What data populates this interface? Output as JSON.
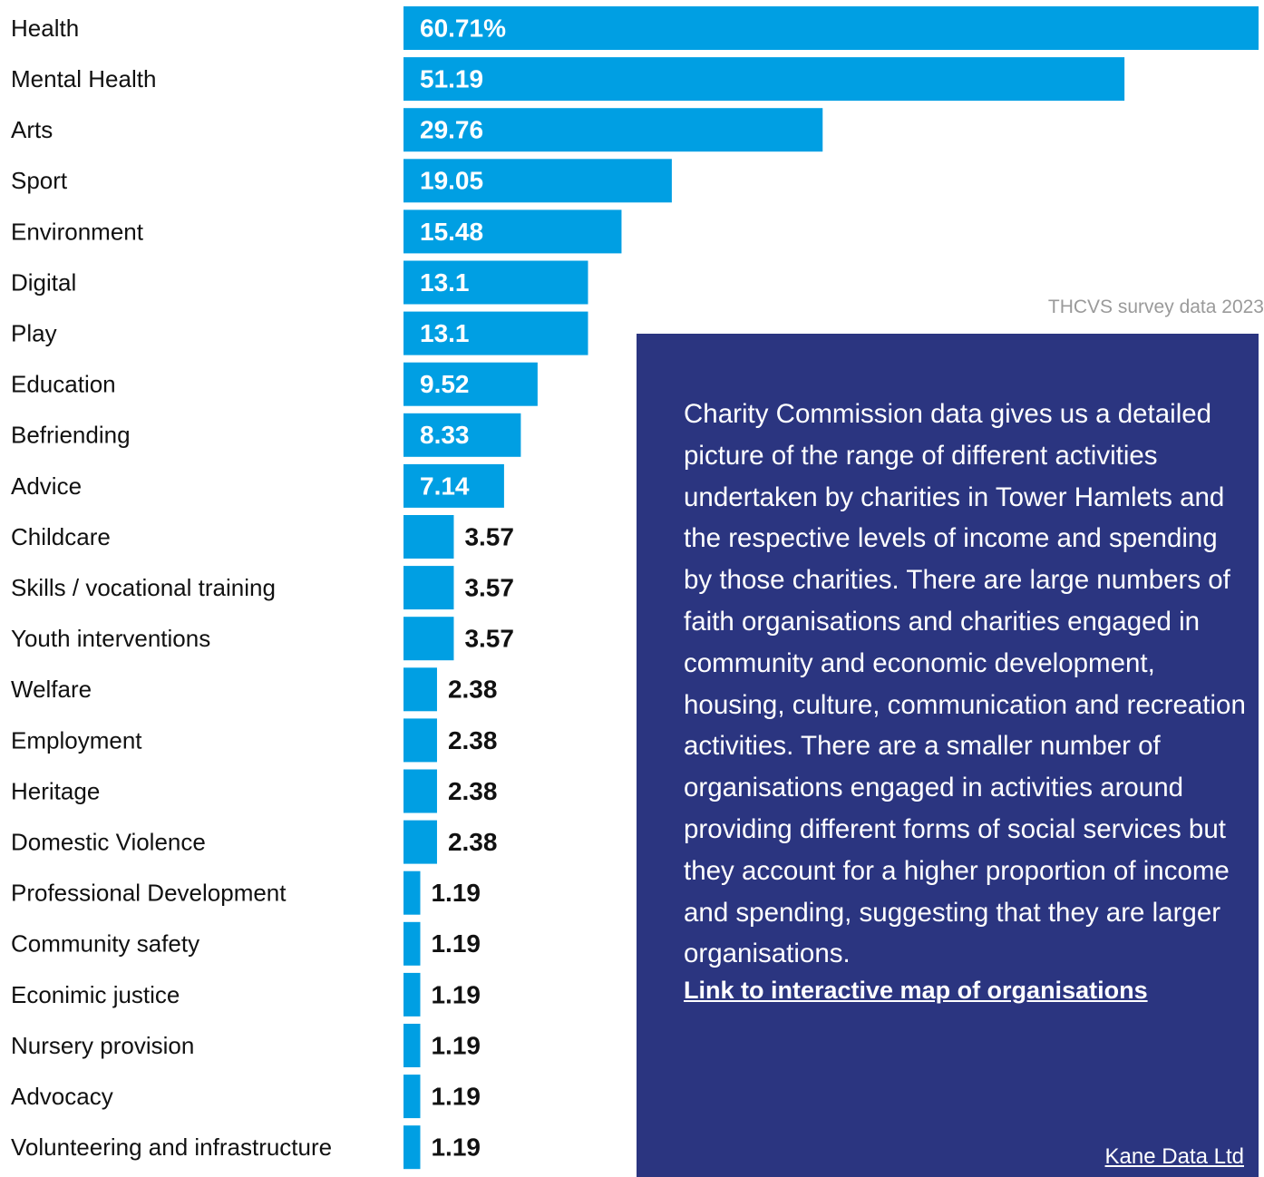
{
  "chart_data": {
    "type": "bar",
    "orientation": "horizontal",
    "color": "#009fe3",
    "source": "THCVS survey data 2023",
    "categories": [
      "Health",
      "Mental Health",
      "Arts",
      "Sport",
      "Environment",
      "Digital",
      "Play",
      "Education",
      "Befriending",
      "Advice",
      "Childcare",
      "Skills / vocational training",
      "Youth interventions",
      "Welfare",
      "Employment",
      "Heritage",
      "Domestic Violence",
      "Professional Development",
      "Community safety",
      "Econimic justice",
      "Nursery provision",
      "Advocacy",
      "Volunteering and infrastructure"
    ],
    "values": [
      60.71,
      51.19,
      29.76,
      19.05,
      15.48,
      13.1,
      13.1,
      9.52,
      8.33,
      7.14,
      3.57,
      3.57,
      3.57,
      2.38,
      2.38,
      2.38,
      2.38,
      1.19,
      1.19,
      1.19,
      1.19,
      1.19,
      1.19
    ],
    "value_labels": [
      "60.71%",
      "51.19",
      "29.76",
      "19.05",
      "15.48",
      "13.1",
      "13.1",
      "9.52",
      "8.33",
      "7.14",
      "3.57",
      "3.57",
      "3.57",
      "2.38",
      "2.38",
      "2.38",
      "2.38",
      "1.19",
      "1.19",
      "1.19",
      "1.19",
      "1.19",
      "1.19"
    ],
    "annotation": {
      "text": "Charity Commission data gives us a detailed picture of the range of different activities undertaken by charities in Tower Hamlets and the respective levels of income and spending by those charities. There are large numbers of faith organisations and charities engaged in community and economic development, housing, culture, communication and recreation activities. There are a smaller number of organisations engaged in activities around providing different forms of social services but they account for a higher proportion of income and spending, suggesting that they are larger organisations.",
      "link": "Link to interactive map of organisations",
      "credit": "Kane Data Ltd"
    }
  }
}
